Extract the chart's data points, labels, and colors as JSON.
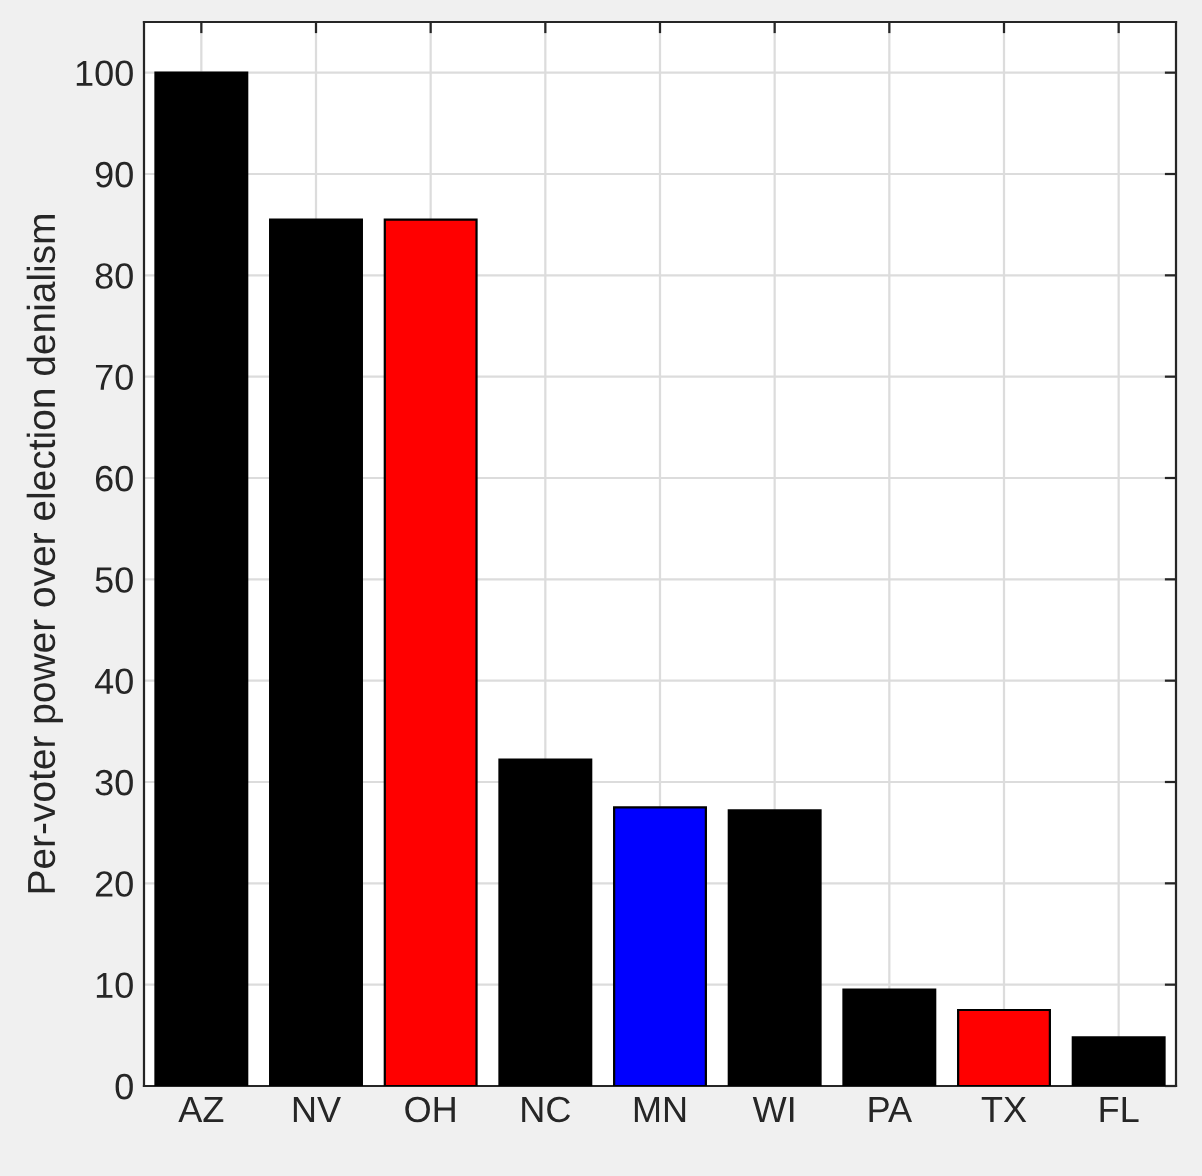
{
  "chart_data": {
    "type": "bar",
    "ylabel": "Per-voter power over election denialism",
    "categories": [
      "AZ",
      "NV",
      "OH",
      "NC",
      "MN",
      "WI",
      "PA",
      "TX",
      "FL"
    ],
    "values": [
      100,
      85.5,
      85.5,
      32.2,
      27.5,
      27.2,
      9.5,
      7.5,
      4.8
    ],
    "colors": [
      "#000000",
      "#000000",
      "#ff0000",
      "#000000",
      "#0000ff",
      "#000000",
      "#000000",
      "#ff0000",
      "#000000"
    ],
    "ylim": [
      0,
      105
    ],
    "yticks": [
      0,
      10,
      20,
      30,
      40,
      50,
      60,
      70,
      80,
      90,
      100
    ],
    "grid": true
  }
}
